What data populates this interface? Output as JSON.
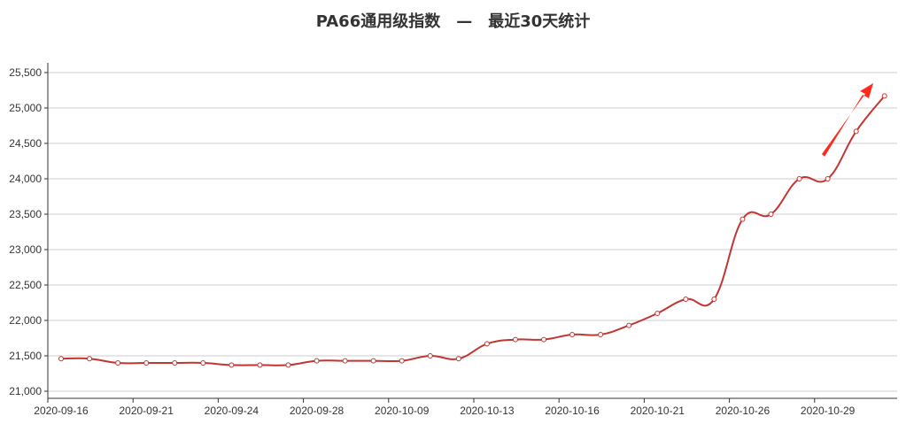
{
  "chart_data": {
    "type": "line",
    "title": "PA66通用级指数　—　最近30天统计",
    "xlabel": "",
    "ylabel": "",
    "ylim": [
      21000,
      25500
    ],
    "yticks": [
      21000,
      21500,
      22000,
      22500,
      23000,
      23500,
      24000,
      24500,
      25000,
      25500
    ],
    "ytick_labels": [
      "21,000",
      "21,500",
      "22,000",
      "22,500",
      "23,000",
      "23,500",
      "24,000",
      "24,500",
      "25,000",
      "25,500"
    ],
    "x_tick_labels": [
      "2020-09-16",
      "2020-09-21",
      "2020-09-24",
      "2020-09-28",
      "2020-10-09",
      "2020-10-13",
      "2020-10-16",
      "2020-10-21",
      "2020-10-26",
      "2020-10-29"
    ],
    "grid": true,
    "series": [
      {
        "values": [
          21460,
          21460,
          21400,
          21400,
          21400,
          21400,
          21370,
          21370,
          21370,
          21430,
          21430,
          21430,
          21430,
          21500,
          21460,
          21670,
          21730,
          21730,
          21800,
          21800,
          21930,
          22100,
          22300,
          22300,
          23430,
          23500,
          24000,
          24000,
          24670,
          25170
        ]
      }
    ],
    "annotations": [
      {
        "type": "arrow",
        "color": "#ff0000",
        "direction": "up-right"
      }
    ],
    "colors": {
      "line": "#c23531",
      "arrow": "#ff2a1a",
      "grid": "#cccccc",
      "axis": "#333333"
    }
  }
}
